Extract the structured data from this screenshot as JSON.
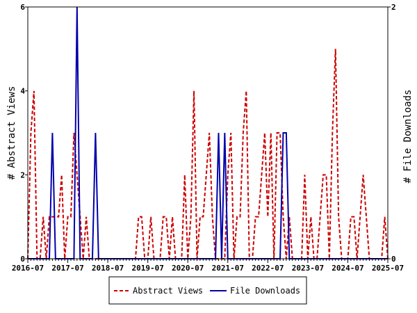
{
  "chart_data": {
    "type": "line",
    "x_ticks": [
      "2016-07",
      "2017-07",
      "2018-07",
      "2019-07",
      "2020-07",
      "2021-07",
      "2022-07",
      "2023-07",
      "2024-07",
      "2025-07"
    ],
    "x_start": "2016-07",
    "x_end": "2025-07",
    "y_left": {
      "label": "# Abstract Views",
      "ticks": [
        "0",
        "2",
        "4",
        "6"
      ],
      "ylim": [
        0,
        6
      ]
    },
    "y_right": {
      "label": "# File Downloads",
      "ticks": [
        "0",
        "2"
      ],
      "ylim": [
        0,
        2
      ]
    },
    "grid": false,
    "legend_position": "bottom",
    "series": [
      {
        "name": "Abstract Views",
        "axis": "left",
        "color": "#cc0000",
        "style": "dashed",
        "values": [
          0,
          3,
          4,
          0,
          0,
          1,
          0,
          1,
          1,
          1,
          1,
          2,
          0,
          1,
          1,
          3,
          2,
          1,
          0,
          1,
          0,
          0,
          0,
          0,
          0,
          0,
          0,
          0,
          0,
          0,
          0,
          0,
          0,
          0,
          0,
          0,
          1,
          1,
          0,
          0,
          1,
          0,
          0,
          0,
          1,
          1,
          0,
          1,
          0,
          0,
          0,
          2,
          0,
          1,
          4,
          0,
          1,
          1,
          2,
          3,
          1,
          0,
          0,
          0,
          0,
          2,
          3,
          0,
          1,
          1,
          3,
          4,
          0,
          0,
          1,
          1,
          2,
          3,
          1,
          3,
          0,
          3,
          3,
          1,
          0,
          1,
          0,
          0,
          0,
          0,
          2,
          0,
          1,
          0,
          0,
          1,
          2,
          2,
          0,
          3,
          5,
          1,
          0,
          0,
          0,
          1,
          1,
          0,
          1,
          2,
          1,
          0,
          0,
          0,
          0,
          0,
          1,
          0
        ]
      },
      {
        "name": "File Downloads",
        "axis": "right",
        "color": "#0000aa",
        "style": "solid",
        "values": [
          0,
          0,
          0,
          0,
          0,
          0,
          0,
          0,
          1,
          0,
          0,
          0,
          0,
          0,
          0,
          0,
          2,
          0,
          0,
          0,
          0,
          0,
          1,
          0,
          0,
          0,
          0,
          0,
          0,
          0,
          0,
          0,
          0,
          0,
          0,
          0,
          0,
          0,
          0,
          0,
          0,
          0,
          0,
          0,
          0,
          0,
          0,
          0,
          0,
          0,
          0,
          0,
          0,
          0,
          0,
          0,
          0,
          0,
          0,
          0,
          0,
          0,
          1,
          0,
          1,
          0,
          0,
          0,
          0,
          0,
          0,
          0,
          0,
          0,
          0,
          0,
          0,
          0,
          0,
          0,
          0,
          0,
          0,
          1,
          1,
          0,
          0,
          0,
          0,
          0,
          0,
          0,
          0,
          0,
          0,
          0,
          0,
          0,
          0,
          0,
          0,
          0,
          0,
          0,
          0,
          0,
          0,
          0,
          0,
          0,
          0,
          0,
          0,
          0,
          0,
          0,
          0,
          0
        ]
      }
    ]
  }
}
